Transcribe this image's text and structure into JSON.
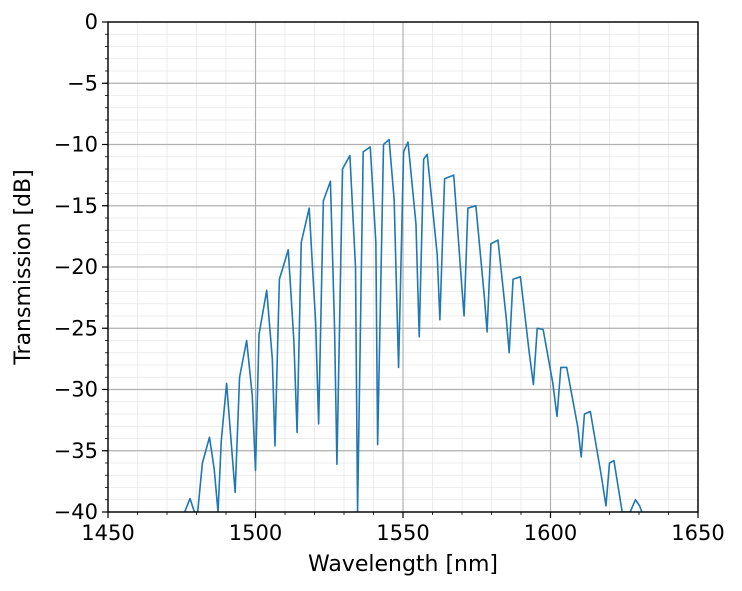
{
  "chart_data": {
    "type": "line",
    "title": "",
    "xlabel": "Wavelength [nm]",
    "ylabel": "Transmission [dB]",
    "xlim": [
      1450,
      1650
    ],
    "ylim": [
      -40,
      0
    ],
    "xticks": [
      1450,
      1500,
      1550,
      1600,
      1650
    ],
    "yticks": [
      0,
      -5,
      -10,
      -15,
      -20,
      -25,
      -30,
      -35,
      -40
    ],
    "xtick_labels": [
      "1450",
      "1500",
      "1550",
      "1600",
      "1650"
    ],
    "ytick_labels": [
      "0",
      "−5",
      "−10",
      "−15",
      "−20",
      "−25",
      "−30",
      "−35",
      "−40"
    ],
    "grid": {
      "major": true,
      "minor": true
    },
    "series": [
      {
        "color": "#1f77b4",
        "x": [
          1476.0,
          1477.8,
          1479.3,
          1480.4,
          1482.0,
          1484.4,
          1486.0,
          1487.3,
          1488.4,
          1490.2,
          1491.5,
          1493.1,
          1494.6,
          1497.0,
          1498.9,
          1500.0,
          1501.2,
          1503.8,
          1505.7,
          1506.6,
          1508.1,
          1511.1,
          1513.0,
          1514.1,
          1515.5,
          1518.2,
          1520.4,
          1521.4,
          1523.0,
          1525.4,
          1526.8,
          1527.6,
          1529.5,
          1532.0,
          1533.9,
          1534.6,
          1536.5,
          1538.9,
          1540.8,
          1541.4,
          1543.4,
          1545.3,
          1547.0,
          1548.5,
          1550.2,
          1551.7,
          1554.4,
          1555.5,
          1557.0,
          1558.2,
          1561.6,
          1562.5,
          1564.1,
          1567.2,
          1569.6,
          1570.7,
          1572.0,
          1574.7,
          1577.6,
          1578.5,
          1579.8,
          1582.2,
          1585.0,
          1586.0,
          1587.3,
          1589.8,
          1592.8,
          1594.2,
          1595.5,
          1597.5,
          1600.8,
          1602.2,
          1603.5,
          1605.5,
          1609.2,
          1610.4,
          1611.5,
          1613.5,
          1617.2,
          1618.8,
          1620.0,
          1621.5,
          1624.3,
          1626.0,
          1627.0,
          1628.8,
          1630.2,
          1631.0
        ],
        "y": [
          -40.0,
          -38.9,
          -40.0,
          -40.0,
          -36.0,
          -33.9,
          -36.5,
          -40.0,
          -34.2,
          -29.5,
          -33.5,
          -38.4,
          -29.0,
          -26.0,
          -30.5,
          -36.6,
          -25.5,
          -21.9,
          -27.5,
          -34.6,
          -21.0,
          -18.6,
          -26.0,
          -33.5,
          -18.0,
          -15.2,
          -24.6,
          -32.8,
          -14.6,
          -13.0,
          -25.0,
          -36.1,
          -12.0,
          -10.9,
          -20.0,
          -40.0,
          -10.6,
          -10.2,
          -18.0,
          -34.5,
          -10.0,
          -9.6,
          -14.5,
          -28.2,
          -10.6,
          -9.8,
          -16.5,
          -25.7,
          -11.2,
          -10.8,
          -19.0,
          -24.3,
          -12.8,
          -12.5,
          -20.5,
          -24.0,
          -15.2,
          -15.0,
          -22.5,
          -25.3,
          -18.1,
          -17.8,
          -24.2,
          -27.0,
          -21.0,
          -20.8,
          -27.0,
          -29.6,
          -25.0,
          -25.1,
          -29.5,
          -32.2,
          -28.2,
          -28.2,
          -33.0,
          -35.5,
          -32.0,
          -31.8,
          -37.0,
          -39.5,
          -36.0,
          -35.8,
          -40.0,
          -40.0,
          -40.0,
          -39.0,
          -39.5,
          -40.0
        ]
      }
    ]
  }
}
